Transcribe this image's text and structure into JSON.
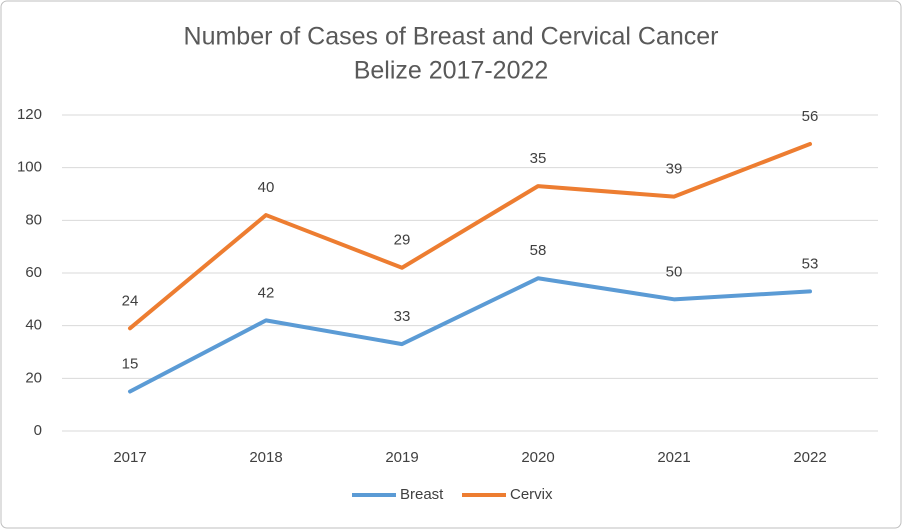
{
  "chart_data": {
    "type": "line",
    "stacked": true,
    "title": "Number of Cases of Breast and Cervical Cancer",
    "subtitle": "Belize 2017-2022",
    "categories": [
      "2017",
      "2018",
      "2019",
      "2020",
      "2021",
      "2022"
    ],
    "series": [
      {
        "name": "Breast",
        "color": "#5b9bd5",
        "values": [
          15,
          42,
          33,
          58,
          50,
          53
        ]
      },
      {
        "name": "Cervix",
        "color": "#ed7d31",
        "values": [
          24,
          40,
          29,
          35,
          39,
          56
        ]
      }
    ],
    "ylim": [
      0,
      120
    ],
    "yticks": [
      0,
      20,
      40,
      60,
      80,
      100,
      120
    ],
    "grid": true,
    "legend": "bottom"
  }
}
